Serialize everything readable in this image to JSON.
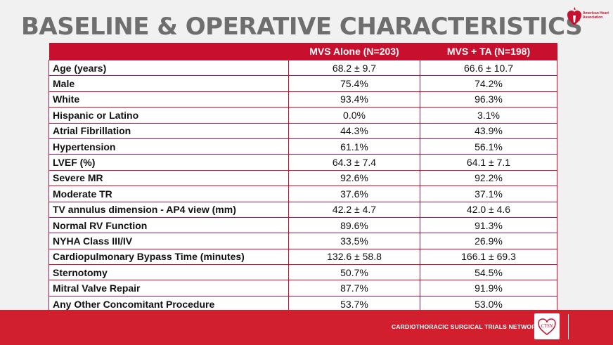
{
  "title": "BASELINE & OPERATIVE CHARACTERISTICS",
  "logo": {
    "text": "American Heart Association",
    "color": "#c8102e"
  },
  "table": {
    "headers": [
      "",
      "MVS Alone  (N=203)",
      "MVS + TA (N=198)"
    ],
    "rows": [
      {
        "label": "Age (years)",
        "mvs": "68.2 ± 9.7",
        "mvs_ta": "66.6 ± 10.7"
      },
      {
        "label": "Male",
        "mvs": "75.4%",
        "mvs_ta": "74.2%"
      },
      {
        "label": "White",
        "mvs": "93.4%",
        "mvs_ta": "96.3%"
      },
      {
        "label": "Hispanic or Latino",
        "mvs": "0.0%",
        "mvs_ta": "3.1%"
      },
      {
        "label": "Atrial Fibrillation",
        "mvs": "44.3%",
        "mvs_ta": "43.9%"
      },
      {
        "label": "Hypertension",
        "mvs": "61.1%",
        "mvs_ta": "56.1%"
      },
      {
        "label": "LVEF (%)",
        "mvs": "64.3 ± 7.4",
        "mvs_ta": "64.1 ± 7.1"
      },
      {
        "label": "Severe MR",
        "mvs": "92.6%",
        "mvs_ta": "92.2%"
      },
      {
        "label": "Moderate TR",
        "mvs": "37.6%",
        "mvs_ta": "37.1%"
      },
      {
        "label": "TV annulus dimension - AP4 view (mm)",
        "mvs": "42.2 ± 4.7",
        "mvs_ta": "42.0 ± 4.6"
      },
      {
        "label": "Normal RV Function",
        "mvs": "89.6%",
        "mvs_ta": "91.3%"
      },
      {
        "label": "NYHA Class III/IV",
        "mvs": "33.5%",
        "mvs_ta": "26.9%"
      },
      {
        "label": "Cardiopulmonary Bypass Time (minutes)",
        "mvs": "132.6 ± 58.8",
        "mvs_ta": "166.1 ± 69.3"
      },
      {
        "label": "Sternotomy",
        "mvs": "50.7%",
        "mvs_ta": "54.5%"
      },
      {
        "label": "Mitral Valve Repair",
        "mvs": "87.7%",
        "mvs_ta": "91.9%"
      },
      {
        "label": "Any Other Concomitant Procedure",
        "mvs": "53.7%",
        "mvs_ta": "53.0%"
      }
    ]
  },
  "footer": {
    "text": "CARDIOTHORACIC SURGICAL TRIALS NETWORK",
    "logo_text": "CTSN",
    "color": "#d21f2e"
  }
}
